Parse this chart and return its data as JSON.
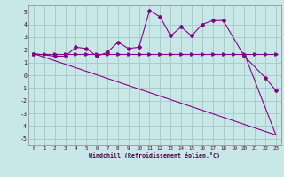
{
  "title": "",
  "xlabel": "Windchill (Refroidissement éolien,°C)",
  "background_color": "#c8e8e8",
  "grid_color": "#aacccc",
  "line_color": "#880088",
  "xlim": [
    -0.5,
    23.5
  ],
  "ylim": [
    -5.5,
    5.5
  ],
  "xticks": [
    0,
    1,
    2,
    3,
    4,
    5,
    6,
    7,
    8,
    9,
    10,
    11,
    12,
    13,
    14,
    15,
    16,
    17,
    18,
    19,
    20,
    21,
    22,
    23
  ],
  "yticks": [
    -5,
    -4,
    -3,
    -2,
    -1,
    0,
    1,
    2,
    3,
    4,
    5
  ],
  "line1_x": [
    0,
    1,
    2,
    3,
    4,
    5,
    6,
    7,
    8,
    9,
    10,
    11,
    12,
    13,
    14,
    15,
    16,
    17,
    18,
    19,
    20,
    21,
    22,
    23
  ],
  "line1_y": [
    1.7,
    1.7,
    1.7,
    1.7,
    1.7,
    1.7,
    1.7,
    1.7,
    1.7,
    1.7,
    1.7,
    1.7,
    1.7,
    1.7,
    1.7,
    1.7,
    1.7,
    1.7,
    1.7,
    1.7,
    1.7,
    1.7,
    1.7,
    1.7
  ],
  "line2_x": [
    0,
    2,
    3,
    4,
    5,
    6,
    7,
    8,
    9,
    10,
    11,
    12,
    13,
    14,
    15,
    16,
    17,
    18,
    20,
    22,
    23
  ],
  "line2_y": [
    1.7,
    1.5,
    1.5,
    2.2,
    2.1,
    1.5,
    1.8,
    2.6,
    2.1,
    2.2,
    5.1,
    4.6,
    3.1,
    3.8,
    3.1,
    4.0,
    4.3,
    4.3,
    1.5,
    -0.2,
    -1.2
  ],
  "line3_x": [
    0,
    23
  ],
  "line3_y": [
    1.7,
    -4.7
  ],
  "line4_x": [
    20,
    23
  ],
  "line4_y": [
    1.7,
    -4.7
  ]
}
